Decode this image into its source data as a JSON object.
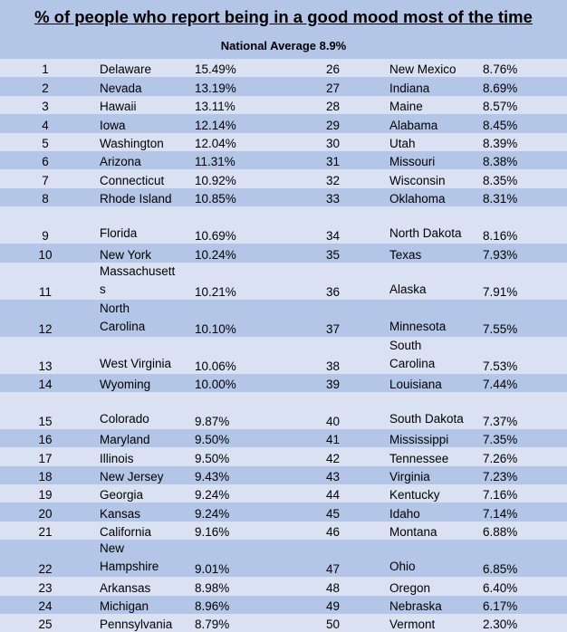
{
  "title": "% of people who report being in a good mood most of the time",
  "subtitle": "National Average 8.9%",
  "colors": {
    "header_bg": "#b4c6e7",
    "row_light": "#d9e1f2",
    "row_dark": "#b4c6e7"
  },
  "rows": [
    {
      "l": {
        "rank": "1",
        "state": "Delaware",
        "pct": "15.49%"
      },
      "r": {
        "rank": "26",
        "state": "New Mexico",
        "pct": "8.76%"
      }
    },
    {
      "l": {
        "rank": "2",
        "state": "Nevada",
        "pct": "13.19%"
      },
      "r": {
        "rank": "27",
        "state": "Indiana",
        "pct": "8.69%"
      }
    },
    {
      "l": {
        "rank": "3",
        "state": "Hawaii",
        "pct": "13.11%"
      },
      "r": {
        "rank": "28",
        "state": "Maine",
        "pct": "8.57%"
      }
    },
    {
      "l": {
        "rank": "4",
        "state": "Iowa",
        "pct": "12.14%"
      },
      "r": {
        "rank": "29",
        "state": "Alabama",
        "pct": "8.45%"
      }
    },
    {
      "l": {
        "rank": "5",
        "state": "Washington",
        "pct": "12.04%"
      },
      "r": {
        "rank": "30",
        "state": "Utah",
        "pct": "8.39%"
      }
    },
    {
      "l": {
        "rank": "6",
        "state": "Arizona",
        "pct": "11.31%"
      },
      "r": {
        "rank": "31",
        "state": "Missouri",
        "pct": "8.38%"
      }
    },
    {
      "l": {
        "rank": "7",
        "state": "Connecticut",
        "pct": "10.92%"
      },
      "r": {
        "rank": "32",
        "state": "Wisconsin",
        "pct": "8.35%"
      }
    },
    {
      "l": {
        "rank": "8",
        "state": "Rhode Island",
        "pct": "10.85%"
      },
      "r": {
        "rank": "33",
        "state": "Oklahoma",
        "pct": "8.31%"
      }
    },
    {
      "l": {
        "rank": "9",
        "state": "Florida",
        "pct": "10.69%"
      },
      "r": {
        "rank": "34",
        "state": "North Dakota",
        "pct": "8.16%"
      }
    },
    {
      "l": {
        "rank": "10",
        "state": "New York",
        "pct": "10.24%"
      },
      "r": {
        "rank": "35",
        "state": "Texas",
        "pct": "7.93%"
      }
    },
    {
      "l": {
        "rank": "11",
        "state": "Massachusetts",
        "pct": "10.21%"
      },
      "r": {
        "rank": "36",
        "state": "Alaska",
        "pct": "7.91%"
      }
    },
    {
      "l": {
        "rank": "12",
        "state": "North Carolina",
        "pct": "10.10%"
      },
      "r": {
        "rank": "37",
        "state": "Minnesota",
        "pct": "7.55%"
      }
    },
    {
      "l": {
        "rank": "13",
        "state": "West Virginia",
        "pct": "10.06%"
      },
      "r": {
        "rank": "38",
        "state": "South Carolina",
        "pct": "7.53%"
      }
    },
    {
      "l": {
        "rank": "14",
        "state": "Wyoming",
        "pct": "10.00%"
      },
      "r": {
        "rank": "39",
        "state": "Louisiana",
        "pct": "7.44%"
      }
    },
    {
      "l": {
        "rank": "15",
        "state": "Colorado",
        "pct": "9.87%"
      },
      "r": {
        "rank": "40",
        "state": "South Dakota",
        "pct": "7.37%"
      }
    },
    {
      "l": {
        "rank": "16",
        "state": "Maryland",
        "pct": "9.50%"
      },
      "r": {
        "rank": "41",
        "state": "Mississippi",
        "pct": "7.35%"
      }
    },
    {
      "l": {
        "rank": "17",
        "state": "Illinois",
        "pct": "9.50%"
      },
      "r": {
        "rank": "42",
        "state": "Tennessee",
        "pct": "7.26%"
      }
    },
    {
      "l": {
        "rank": "18",
        "state": "New Jersey",
        "pct": "9.43%"
      },
      "r": {
        "rank": "43",
        "state": "Virginia",
        "pct": "7.23%"
      }
    },
    {
      "l": {
        "rank": "19",
        "state": "Georgia",
        "pct": "9.24%"
      },
      "r": {
        "rank": "44",
        "state": "Kentucky",
        "pct": "7.16%"
      }
    },
    {
      "l": {
        "rank": "20",
        "state": "Kansas",
        "pct": "9.24%"
      },
      "r": {
        "rank": "45",
        "state": "Idaho",
        "pct": "7.14%"
      }
    },
    {
      "l": {
        "rank": "21",
        "state": "California",
        "pct": "9.16%"
      },
      "r": {
        "rank": "46",
        "state": "Montana",
        "pct": "6.88%"
      }
    },
    {
      "l": {
        "rank": "22",
        "state": "New Hampshire",
        "pct": "9.01%"
      },
      "r": {
        "rank": "47",
        "state": "Ohio",
        "pct": "6.85%"
      }
    },
    {
      "l": {
        "rank": "23",
        "state": "Arkansas",
        "pct": "8.98%"
      },
      "r": {
        "rank": "48",
        "state": "Oregon",
        "pct": "6.40%"
      }
    },
    {
      "l": {
        "rank": "24",
        "state": "Michigan",
        "pct": "8.96%"
      },
      "r": {
        "rank": "49",
        "state": "Nebraska",
        "pct": "6.17%"
      }
    },
    {
      "l": {
        "rank": "25",
        "state": "Pennsylvania",
        "pct": "8.79%"
      },
      "r": {
        "rank": "50",
        "state": "Vermont",
        "pct": "2.30%"
      }
    }
  ]
}
